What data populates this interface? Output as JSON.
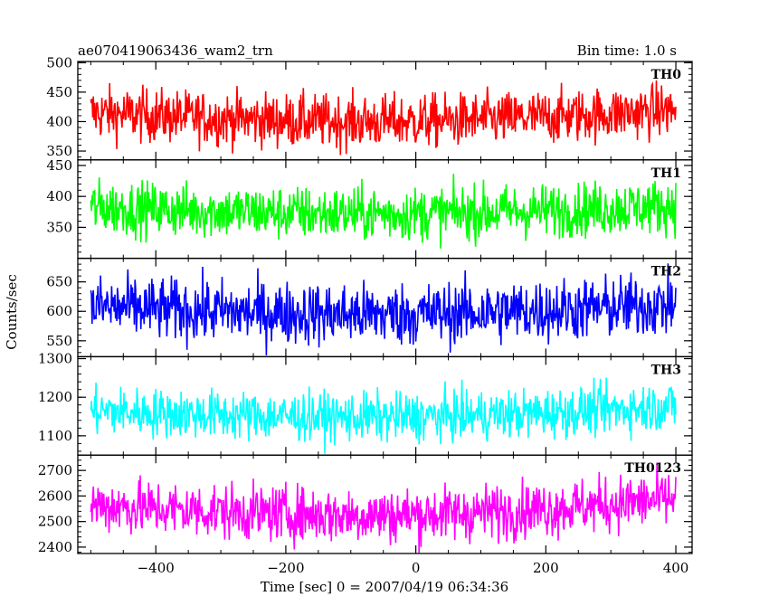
{
  "title_left": "ae070419063436_wam2_trn",
  "title_right": "Bin time: 1.0 s",
  "ylabel": "Counts/sec",
  "xlabel": "Time [sec] 0 = 2007/04/19 06:34:36",
  "chart_data": {
    "type": "line",
    "x_range": [
      -500,
      400
    ],
    "xlim": [
      -520,
      425
    ],
    "x_ticks": [
      -400,
      -200,
      0,
      200,
      400
    ],
    "bin_time_s": 1.0,
    "panels": [
      {
        "name": "TH0",
        "color": "#ff0000",
        "ylim": [
          335,
          502
        ],
        "y_ticks": [
          350,
          400,
          450,
          500
        ],
        "baseline_start": 415,
        "baseline_mid": 400,
        "baseline_end": 420,
        "noise": 23
      },
      {
        "name": "TH1",
        "color": "#00ff00",
        "ylim": [
          300,
          459
        ],
        "y_ticks": [
          350,
          400,
          450
        ],
        "baseline_start": 383,
        "baseline_mid": 372,
        "baseline_end": 385,
        "noise": 22
      },
      {
        "name": "TH2",
        "color": "#0000ff",
        "ylim": [
          523,
          690
        ],
        "y_ticks": [
          550,
          600,
          650
        ],
        "baseline_start": 608,
        "baseline_mid": 595,
        "baseline_end": 612,
        "noise": 27
      },
      {
        "name": "TH3",
        "color": "#00ffff",
        "ylim": [
          1050,
          1305
        ],
        "y_ticks": [
          1100,
          1200,
          1300
        ],
        "baseline_start": 1165,
        "baseline_mid": 1148,
        "baseline_end": 1178,
        "noise": 32
      },
      {
        "name": "TH0123",
        "color": "#ff00ff",
        "ylim": [
          2375,
          2760
        ],
        "y_ticks": [
          2400,
          2500,
          2600,
          2700
        ],
        "baseline_start": 2565,
        "baseline_mid": 2525,
        "baseline_end": 2590,
        "noise": 55
      }
    ]
  }
}
